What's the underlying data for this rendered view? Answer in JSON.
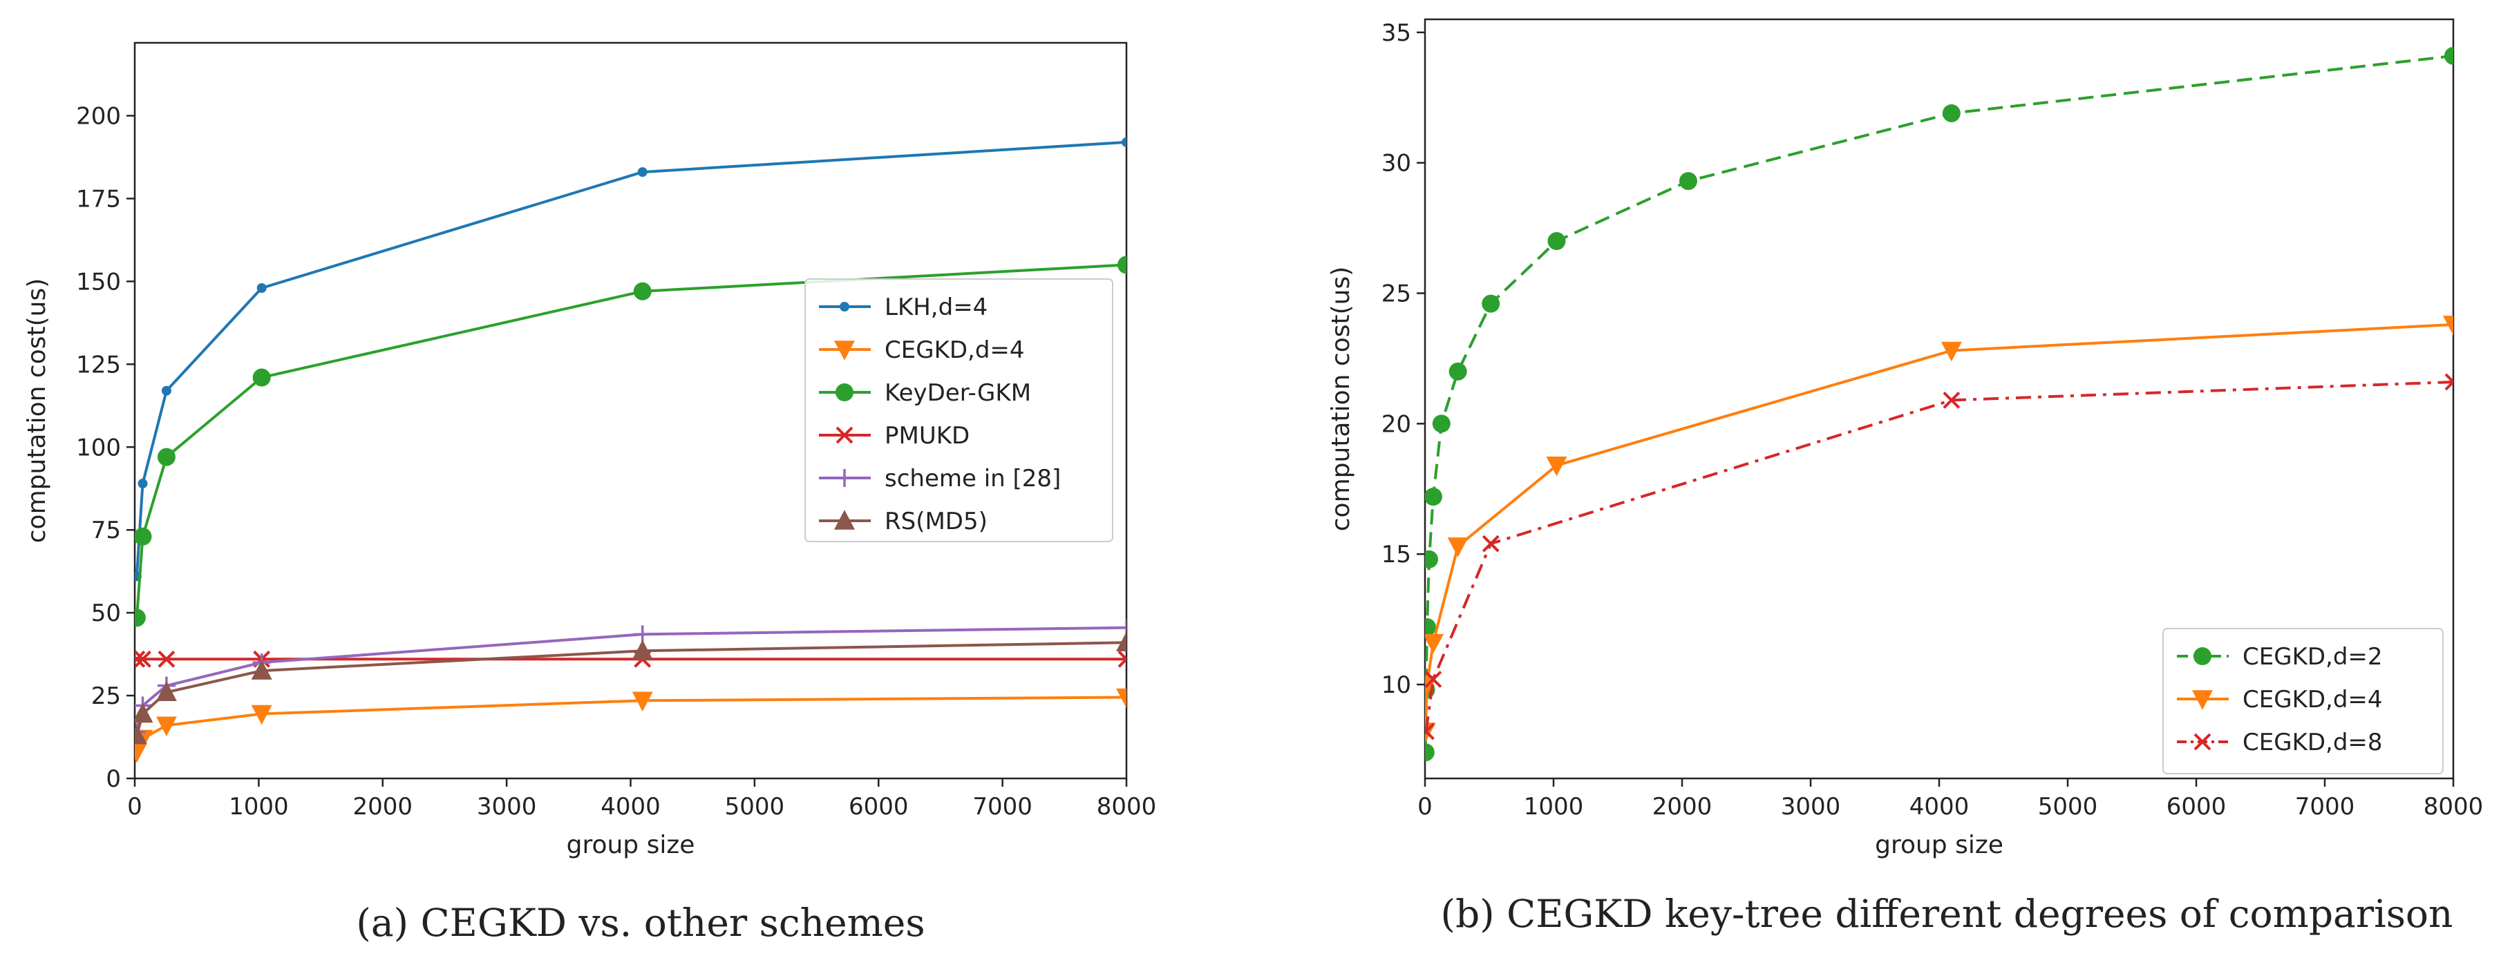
{
  "chart_data": [
    {
      "type": "line",
      "xlabel": "group size",
      "ylabel": "computation cost(us)",
      "xlim": [
        0,
        8000
      ],
      "ylim": [
        0,
        222
      ],
      "xticks": [
        0,
        1000,
        2000,
        3000,
        4000,
        5000,
        6000,
        7000,
        8000
      ],
      "yticks": [
        0,
        25,
        50,
        75,
        100,
        125,
        150,
        175,
        200
      ],
      "grid": false,
      "legend_position": "center-right",
      "caption": "(a) CEGKD vs. other schemes",
      "series": [
        {
          "name": "LKH,d=4",
          "color": "#1f77b4",
          "marker": "dot",
          "dash": "solid",
          "x": [
            16,
            64,
            256,
            1024,
            4096,
            8000
          ],
          "y": [
            61,
            89,
            117,
            148,
            183,
            192
          ]
        },
        {
          "name": "CEGKD,d=4",
          "color": "#ff7f0e",
          "marker": "triangle-down",
          "dash": "solid",
          "x": [
            16,
            64,
            256,
            1024,
            4096,
            8000
          ],
          "y": [
            8,
            12,
            16,
            19.5,
            23.5,
            24.5
          ]
        },
        {
          "name": "KeyDer-GKM",
          "color": "#2ca02c",
          "marker": "circle",
          "dash": "solid",
          "x": [
            16,
            64,
            256,
            1024,
            4096,
            8000
          ],
          "y": [
            48.5,
            73,
            97,
            121,
            147,
            155
          ]
        },
        {
          "name": "PMUKD",
          "color": "#d62728",
          "marker": "x",
          "dash": "solid",
          "x": [
            16,
            64,
            256,
            1024,
            4096,
            8000
          ],
          "y": [
            36,
            36,
            36,
            36,
            36,
            36
          ]
        },
        {
          "name": "scheme in [28]",
          "color": "#9467bd",
          "marker": "plus",
          "dash": "solid",
          "x": [
            16,
            64,
            256,
            1024,
            4096,
            8000
          ],
          "y": [
            14,
            22,
            28,
            35,
            43.5,
            45.5
          ]
        },
        {
          "name": "RS(MD5)",
          "color": "#8c564b",
          "marker": "triangle-up",
          "dash": "solid",
          "x": [
            16,
            64,
            256,
            1024,
            4096,
            8000
          ],
          "y": [
            13,
            19.5,
            26,
            32.5,
            38.5,
            41
          ]
        }
      ]
    },
    {
      "type": "line",
      "xlabel": "group size",
      "ylabel": "computation cost(us)",
      "xlim": [
        0,
        8000
      ],
      "ylim": [
        6.4,
        35.5
      ],
      "xticks": [
        0,
        1000,
        2000,
        3000,
        4000,
        5000,
        6000,
        7000,
        8000
      ],
      "yticks": [
        10,
        15,
        20,
        25,
        30,
        35
      ],
      "grid": false,
      "legend_position": "lower-right",
      "caption": "(b) CEGKD key-tree different degrees of comparison",
      "series": [
        {
          "name": "CEGKD,d=2",
          "color": "#2ca02c",
          "marker": "circle",
          "dash": "dashed",
          "x": [
            4,
            8,
            16,
            32,
            64,
            128,
            256,
            512,
            1024,
            2048,
            4096,
            8000
          ],
          "y": [
            7.4,
            9.8,
            12.2,
            14.8,
            17.2,
            20,
            22,
            24.6,
            27,
            29.3,
            31.9,
            34.1
          ]
        },
        {
          "name": "CEGKD,d=4",
          "color": "#ff7f0e",
          "marker": "triangle-down",
          "dash": "solid",
          "x": [
            4,
            16,
            64,
            256,
            1024,
            4096,
            8000
          ],
          "y": [
            8.2,
            10,
            11.6,
            15.3,
            18.4,
            22.8,
            23.8
          ]
        },
        {
          "name": "CEGKD,d=8",
          "color": "#d62728",
          "marker": "x",
          "dash": "dashdot",
          "x": [
            8,
            64,
            512,
            4096,
            8000
          ],
          "y": [
            8.2,
            10.2,
            15.4,
            20.9,
            21.6
          ]
        }
      ]
    }
  ]
}
